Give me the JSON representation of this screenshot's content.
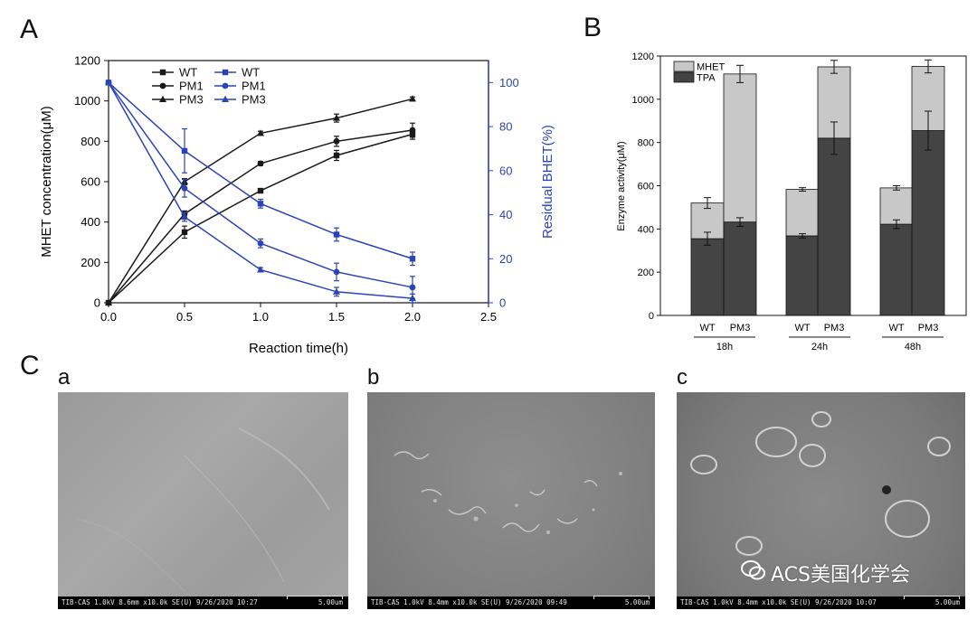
{
  "panels": {
    "A": "A",
    "B": "B",
    "C": "C"
  },
  "sem": {
    "letters": [
      "a",
      "b",
      "c"
    ],
    "captions": [
      "TIB-CAS 1.0kV 8.6mm x10.0k SE(U) 9/26/2020 10:27",
      "TIB-CAS 1.0kV 8.4mm x10.0k SE(U) 9/26/2020 09:49",
      "TIB-CAS 1.0kV 8.4mm x10.0k SE(U) 9/26/2020 10:07"
    ],
    "scale_label": "5.00um"
  },
  "watermark": {
    "text": "ACS美国化学会",
    "icon": "wechat-icon"
  },
  "colors": {
    "black": "#1a1a1a",
    "blue": "#2b43b8",
    "tpa": "#444444",
    "mhet": "#c8c8c8"
  },
  "chart_data": [
    {
      "type": "line",
      "xlabel": "Reaction time(h)",
      "ylabel": "MHET concentration(μM)",
      "y2label": "Residual BHET(%)",
      "xlim": [
        0.0,
        2.5
      ],
      "xticks": [
        "0.0",
        "0.5",
        "1.0",
        "1.5",
        "2.0",
        "2.5"
      ],
      "ylim": [
        0,
        1200
      ],
      "yticks": [
        "0",
        "200",
        "400",
        "600",
        "800",
        "1000",
        "1200"
      ],
      "y2lim": [
        0,
        110
      ],
      "y2ticks": [
        "0",
        "20",
        "40",
        "60",
        "80",
        "100"
      ],
      "x": [
        0.0,
        0.5,
        1.0,
        1.5,
        2.0
      ],
      "legend_position": "top-left",
      "series": [
        {
          "name": "WT",
          "axis": "left",
          "marker": "square",
          "values": [
            0,
            350,
            555,
            730,
            835
          ],
          "err": [
            0,
            30,
            10,
            25,
            25
          ]
        },
        {
          "name": "PM1",
          "axis": "left",
          "marker": "circle",
          "values": [
            0,
            440,
            690,
            800,
            855
          ],
          "err": [
            0,
            15,
            10,
            25,
            35
          ]
        },
        {
          "name": "PM3",
          "axis": "left",
          "marker": "triangle",
          "values": [
            0,
            600,
            840,
            915,
            1010
          ],
          "err": [
            0,
            15,
            10,
            20,
            10
          ]
        },
        {
          "name": "WT",
          "axis": "right",
          "marker": "square",
          "values": [
            100,
            69,
            45,
            31,
            20
          ],
          "err": [
            0,
            10,
            2,
            3,
            3
          ]
        },
        {
          "name": "PM1",
          "axis": "right",
          "marker": "circle",
          "values": [
            100,
            52,
            27,
            14,
            7
          ],
          "err": [
            0,
            4,
            2,
            4,
            5
          ]
        },
        {
          "name": "PM3",
          "axis": "right",
          "marker": "triangle",
          "values": [
            100,
            39,
            15,
            5,
            2
          ],
          "err": [
            0,
            2,
            1,
            2,
            2
          ]
        }
      ]
    },
    {
      "type": "bar",
      "stacked": true,
      "ylabel": "Enzyme activity(μM)",
      "ylim": [
        0,
        1200
      ],
      "yticks": [
        "0",
        "200",
        "400",
        "600",
        "800",
        "1000",
        "1200"
      ],
      "categories": [
        "WT",
        "PM3",
        "WT",
        "PM3",
        "WT",
        "PM3"
      ],
      "groups": [
        "18h",
        "24h",
        "48h"
      ],
      "legend_position": "top-left",
      "series": [
        {
          "name": "TPA",
          "values": [
            355,
            432,
            368,
            820,
            422,
            855
          ],
          "err": [
            30,
            20,
            10,
            75,
            20,
            90
          ]
        },
        {
          "name": "MHET",
          "values": [
            165,
            685,
            215,
            330,
            168,
            297
          ],
          "err": [
            25,
            40,
            8,
            30,
            10,
            30
          ]
        }
      ]
    }
  ]
}
